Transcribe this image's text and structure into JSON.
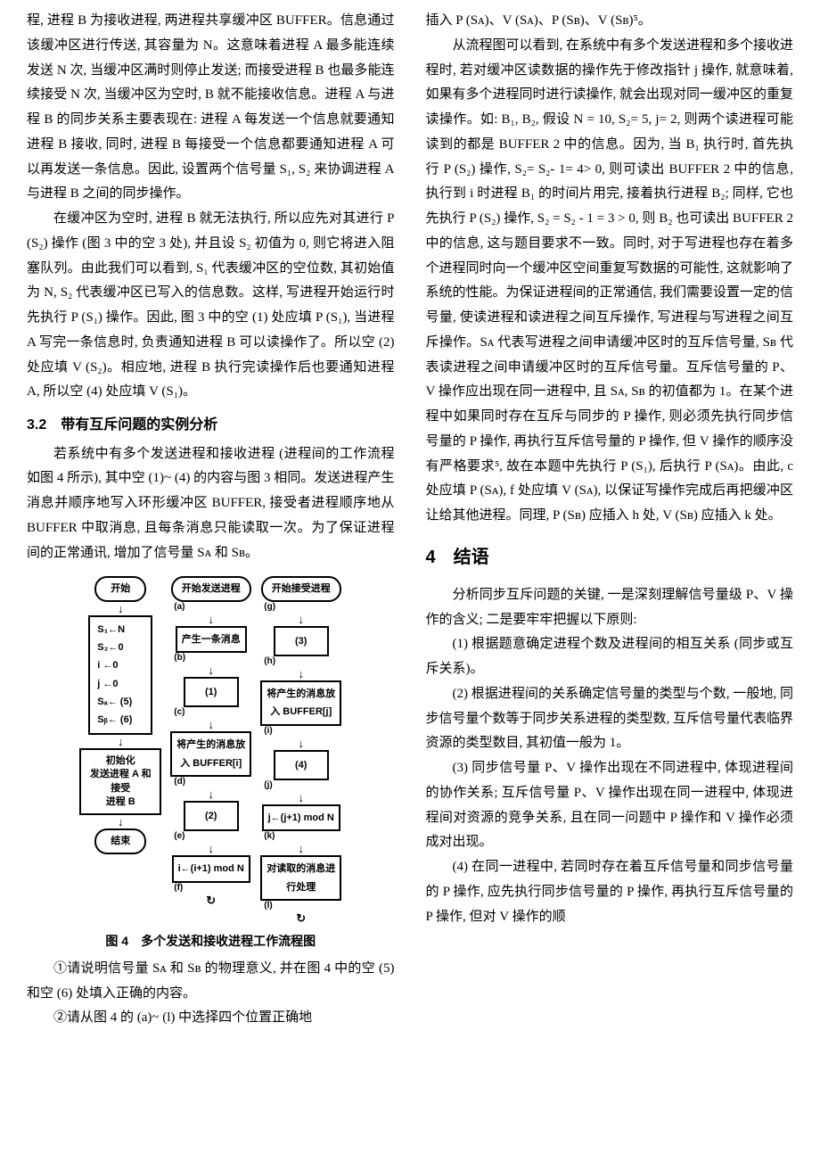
{
  "leftCol": {
    "p1": "程, 进程 B 为接收进程, 两进程共享缓冲区 BUFFER。信息通过该缓冲区进行传送, 其容量为 N。这意味着进程 A 最多能连续发送 N 次, 当缓冲区满时则停止发送; 而接受进程 B 也最多能连续接受 N 次, 当缓冲区为空时, B 就不能接收信息。进程 A 与进程 B 的同步关系主要表现在: 进程 A 每发送一个信息就要通知进程 B 接收, 同时, 进程 B 每接受一个信息都要通知进程 A 可以再发送一条信息。因此, 设置两个信号量 S₁, S₂ 来协调进程 A 与进程 B 之间的同步操作。",
    "p2": "在缓冲区为空时, 进程 B 就无法执行, 所以应先对其进行 P (S₂) 操作 (图 3 中的空 3 处), 并且设 S₂ 初值为 0, 则它将进入阻塞队列。由此我们可以看到, S₁ 代表缓冲区的空位数, 其初始值为 N, S₂ 代表缓冲区已写入的信息数。这样, 写进程开始运行时先执行 P (S₁) 操作。因此, 图 3 中的空 (1) 处应填 P (S₁), 当进程 A 写完一条信息时, 负责通知进程 B 可以读操作了。所以空 (2) 处应填 V (S₂)。相应地, 进程 B 执行完读操作后也要通知进程 A, 所以空 (4) 处应填 V (S₁)。",
    "h32": "3.2　带有互斥问题的实例分析",
    "p3": "若系统中有多个发送进程和接收进程 (进程间的工作流程如图 4 所示), 其中空 (1)~ (4) 的内容与图 3 相同。发送进程产生消息并顺序地写入环形缓冲区 BUFFER, 接受者进程顺序地从 BUFFER 中取消息, 且每条消息只能读取一次。为了保证进程间的正常通讯, 增加了信号量 Sᴀ 和 Sʙ。",
    "figCaption": "图 4　多个发送和接收进程工作流程图",
    "p4": "①请说明信号量 Sᴀ 和 Sʙ 的物理意义, 并在图 4 中的空 (5) 和空 (6) 处填入正确的内容。",
    "p5": "②请从图 4 的 (a)~ (l) 中选择四个位置正确地"
  },
  "rightCol": {
    "p1": "插入 P (Sᴀ)、V (Sᴀ)、P (Sʙ)、V (Sʙ)⁵。",
    "p2": "从流程图可以看到, 在系统中有多个发送进程和多个接收进程时, 若对缓冲区读数据的操作先于修改指针 j 操作, 就意味着, 如果有多个进程同时进行读操作, 就会出现对同一缓冲区的重复读操作。如: B₁, B₂, 假设 N = 10, S₂= 5, j= 2, 则两个读进程可能读到的都是 BUFFER 2 中的信息。因为, 当 B₁ 执行时, 首先执行 P (S₂) 操作, S₂= S₂- 1= 4> 0, 则可读出 BUFFER 2 中的信息, 执行到 i 时进程 B₁ 的时间片用完, 接着执行进程 B₂; 同样, 它也先执行 P (S₂) 操作, S₂ = S₂ - 1 = 3 > 0, 则 B₂ 也可读出 BUFFER 2 中的信息, 这与题目要求不一致。同时, 对于写进程也存在着多个进程同时向一个缓冲区空间重复写数据的可能性, 这就影响了系统的性能。为保证进程间的正常通信, 我们需要设置一定的信号量, 使读进程和读进程之间互斥操作, 写进程与写进程之间互斥操作。Sᴀ 代表写进程之间申请缓冲区时的互斥信号量, Sʙ 代表读进程之间申请缓冲区时的互斥信号量。互斥信号量的 P、V 操作应出现在同一进程中, 且 Sᴀ, Sʙ 的初值都为 1。在某个进程中如果同时存在互斥与同步的 P 操作, 则必须先执行同步信号量的 P 操作, 再执行互斥信号量的 P 操作, 但 V 操作的顺序没有严格要求⁵, 故在本题中先执行 P (S₁), 后执行 P (Sᴀ)。由此, c 处应填 P (Sᴀ), f 处应填 V (Sᴀ), 以保证写操作完成后再把缓冲区让给其他进程。同理, P (Sʙ) 应插入 h 处, V (Sʙ) 应插入 k 处。",
    "h4": "4　结语",
    "p3": "分析同步互斥问题的关键, 一是深刻理解信号量级 P、V 操作的含义; 二是要牢牢把握以下原则:",
    "p4": "(1) 根据题意确定进程个数及进程间的相互关系 (同步或互斥关系)。",
    "p5": "(2) 根据进程间的关系确定信号量的类型与个数, 一般地, 同步信号量个数等于同步关系进程的类型数, 互斥信号量代表临界资源的类型数目, 其初值一般为 1。",
    "p6": "(3) 同步信号量 P、V 操作出现在不同进程中, 体现进程间的协作关系; 互斥信号量 P、V 操作出现在同一进程中, 体现进程间对资源的竞争关系, 且在同一问题中 P 操作和 V 操作必须成对出现。",
    "p7": "(4) 在同一进程中, 若同时存在着互斥信号量和同步信号量的 P 操作, 应先执行同步信号量的 P 操作, 再执行互斥信号量的 P 操作, 但对 V 操作的顺"
  },
  "flowchart": {
    "col1": {
      "start": "开始",
      "init_box": "S₁←N\nS₂←0\ni ←0\nj ←0\nSₐ← (5)\nSᵦ← (6)",
      "init_proc": "初始化\n发送进程 A 和接受\n进程 B",
      "end": "结束"
    },
    "col2": {
      "start": "开始发送进程",
      "la": "(a)",
      "b1": "产生一条消息",
      "lb": "(b)",
      "b2": "(1)",
      "lc": "(c)",
      "b3": "将产生的消息放\n入 BUFFER[i]",
      "ld": "(d)",
      "b4": "(2)",
      "le": "(e)",
      "b5": "i←(i+1) mod N",
      "lf": "(f)"
    },
    "col3": {
      "start": "开始接受进程",
      "lg": "(g)",
      "b1": "(3)",
      "lh": "(h)",
      "b2": "将产生的消息放\n入 BUFFER[j]",
      "li": "(i)",
      "b3": "(4)",
      "lj": "(j)",
      "b4": "j←(j+1) mod N",
      "lk": "(k)",
      "b5": "对读取的消息进\n行处理",
      "ll": "(l)"
    }
  }
}
